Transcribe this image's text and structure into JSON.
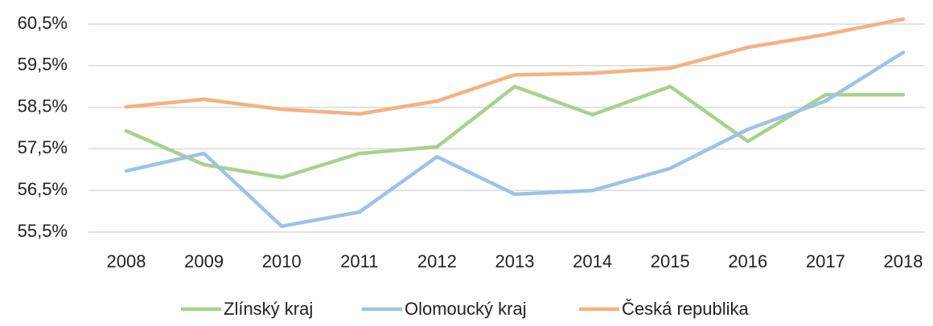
{
  "chart_data": {
    "type": "line",
    "categories": [
      "2008",
      "2009",
      "2010",
      "2011",
      "2012",
      "2013",
      "2014",
      "2015",
      "2016",
      "2017",
      "2018"
    ],
    "series": [
      {
        "name": "Zlínský kraj",
        "color": "#a9d18e",
        "values": [
          57.93,
          57.12,
          56.81,
          57.39,
          57.55,
          59.0,
          58.32,
          59.0,
          57.68,
          58.8,
          58.8
        ]
      },
      {
        "name": "Olomoucký kraj",
        "color": "#9dc3e6",
        "values": [
          56.97,
          57.39,
          55.64,
          55.98,
          57.31,
          56.41,
          56.5,
          57.03,
          57.97,
          58.65,
          59.82
        ]
      },
      {
        "name": "Česká republika",
        "color": "#f4b183",
        "values": [
          58.51,
          58.69,
          58.45,
          58.34,
          58.65,
          59.28,
          59.32,
          59.44,
          59.94,
          60.25,
          60.62
        ]
      }
    ],
    "ylim": [
      55.5,
      60.5
    ],
    "yticks": [
      {
        "value": 55.5,
        "label": "55,5%"
      },
      {
        "value": 56.5,
        "label": "56,5%"
      },
      {
        "value": 57.5,
        "label": "57,5%"
      },
      {
        "value": 58.5,
        "label": "58,5%"
      },
      {
        "value": 59.5,
        "label": "59,5%"
      },
      {
        "value": 60.5,
        "label": "60,5%"
      }
    ],
    "grid": true,
    "legend": "bottom"
  }
}
